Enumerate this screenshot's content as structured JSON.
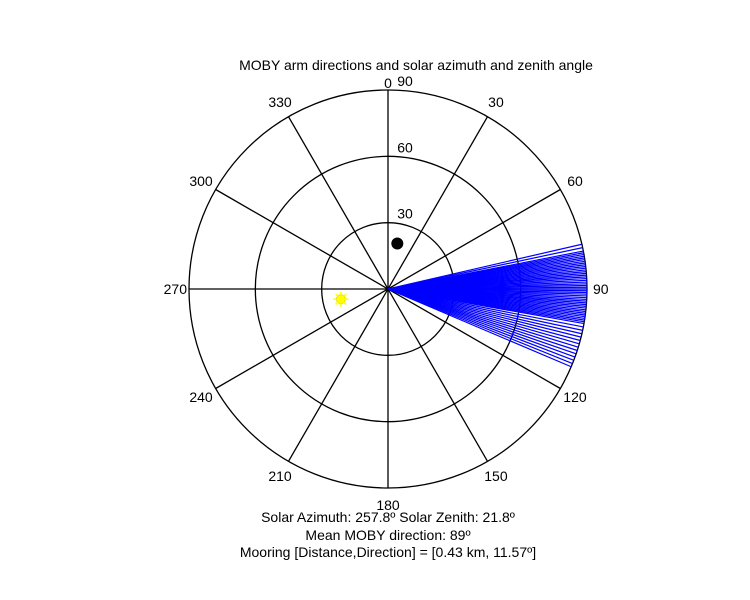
{
  "chart_data": {
    "type": "polar",
    "title": "MOBY arm directions and solar azimuth and zenith angle",
    "angular_axis": {
      "direction": "clockwise",
      "zero_at": "top",
      "ticks": [
        0,
        30,
        60,
        90,
        120,
        150,
        180,
        210,
        240,
        270,
        300,
        330
      ],
      "tick_labels": [
        "0",
        "30",
        "60",
        "90",
        "120",
        "150",
        "180",
        "210",
        "240",
        "270",
        "300",
        "330"
      ]
    },
    "radial_axis": {
      "label_meaning": "zenith angle",
      "rmax": 90,
      "ticks": [
        30,
        60,
        90
      ],
      "tick_labels": [
        "30",
        "60",
        "90"
      ]
    },
    "arm_directions": {
      "color": "#0000ff",
      "length": 90,
      "azimuths_deg": [
        77,
        78,
        79,
        79.5,
        80,
        80.5,
        81,
        81.5,
        82,
        82.5,
        83,
        83.5,
        84,
        84.5,
        85,
        85.5,
        86,
        86.5,
        87,
        87.5,
        88,
        88.5,
        89,
        89.5,
        90,
        90.5,
        91,
        91.5,
        92,
        92.5,
        93,
        93.5,
        94,
        94.5,
        95,
        95.5,
        96,
        96.5,
        97,
        97.5,
        98,
        98.5,
        99,
        99.5,
        100,
        101,
        102,
        103,
        104,
        105,
        106,
        107,
        108,
        109,
        110,
        111,
        112,
        113
      ]
    },
    "mooring_marker": {
      "direction_deg": 11.57,
      "r": 21,
      "color": "#000000"
    },
    "sun_marker": {
      "azimuth_deg": 257.8,
      "zenith_deg": 21.8,
      "color": "#ffff00"
    },
    "annotations": [
      "Solar Azimuth: 257.8º   Solar Zenith: 21.8º",
      "Mean MOBY direction: 89º",
      "Mooring [Distance,Direction] = [0.43 km, 11.57º]"
    ]
  }
}
